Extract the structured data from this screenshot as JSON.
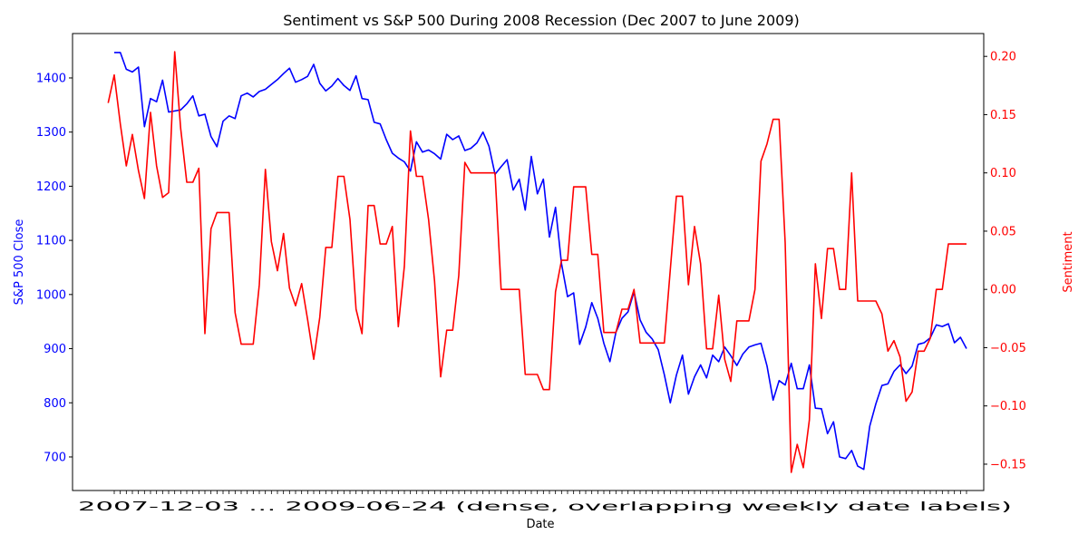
{
  "chart_data": {
    "type": "line",
    "title": "Sentiment vs S&P 500 During 2008 Recession (Dec 2007 to June 2009)",
    "xlabel": "Date",
    "ylabel_left": "S&P 500 Close",
    "ylabel_right": "Sentiment",
    "ylim_left": [
      638,
      1482
    ],
    "ylim_right": [
      -0.1726,
      0.2196
    ],
    "yticks_left": [
      700,
      800,
      900,
      1000,
      1100,
      1200,
      1300,
      1400
    ],
    "yticks_right": [
      -0.15,
      -0.1,
      -0.05,
      0.0,
      0.05,
      0.1,
      0.15,
      0.2
    ],
    "ytick_labels_right": [
      "−0.15",
      "−0.10",
      "−0.05",
      "0.00",
      "0.05",
      "0.10",
      "0.15",
      "0.20"
    ],
    "x_tick_label_text": "2007-12-03 … 2009-06-24 (dense, overlapping weekly date labels)",
    "grid": false,
    "colors": {
      "sp500": "#0000ff",
      "sentiment": "#ff0000"
    },
    "series": [
      {
        "axis": "left",
        "color": "#0000ff",
        "values": [
          1447,
          1447,
          1416,
          1411,
          1420,
          1310,
          1362,
          1356,
          1396,
          1337,
          1339,
          1341,
          1352,
          1367,
          1330,
          1333,
          1292,
          1273,
          1320,
          1330,
          1325,
          1367,
          1372,
          1365,
          1375,
          1379,
          1388,
          1397,
          1408,
          1418,
          1392,
          1397,
          1403,
          1425,
          1390,
          1376,
          1385,
          1399,
          1386,
          1377,
          1404,
          1362,
          1360,
          1318,
          1315,
          1286,
          1261,
          1252,
          1245,
          1228,
          1282,
          1263,
          1267,
          1260,
          1250,
          1296,
          1286,
          1293,
          1266,
          1270,
          1280,
          1300,
          1274,
          1222,
          1236,
          1249,
          1193,
          1213,
          1156,
          1255,
          1186,
          1213,
          1106,
          1161,
          1057,
          996,
          1003,
          908,
          940,
          985,
          956,
          910,
          876,
          930,
          956,
          968,
          1005,
          953,
          930,
          918,
          898,
          852,
          800,
          851,
          888,
          816,
          848,
          870,
          846,
          888,
          876,
          903,
          887,
          869,
          890,
          903,
          907,
          910,
          868,
          805,
          841,
          833,
          873,
          826,
          826,
          870,
          790,
          789,
          743,
          765,
          700,
          697,
          712,
          683,
          677,
          757,
          798,
          832,
          835,
          858,
          870,
          854,
          868,
          908,
          911,
          920,
          944,
          941,
          946,
          911,
          921,
          900
        ]
      },
      {
        "axis": "right",
        "color": "#ff0000",
        "values": [
          0.16,
          0.184,
          0.142,
          0.106,
          0.133,
          0.102,
          0.078,
          0.152,
          0.106,
          0.079,
          0.083,
          0.204,
          0.138,
          0.092,
          0.092,
          0.104,
          -0.038,
          0.052,
          0.066,
          0.066,
          0.066,
          -0.02,
          -0.047,
          -0.047,
          -0.047,
          0.004,
          0.103,
          0.041,
          0.016,
          0.048,
          0.001,
          -0.014,
          0.005,
          -0.026,
          -0.06,
          -0.024,
          0.036,
          0.036,
          0.097,
          0.097,
          0.06,
          -0.017,
          -0.038,
          0.072,
          0.072,
          0.039,
          0.039,
          0.054,
          -0.032,
          0.02,
          0.136,
          0.097,
          0.097,
          0.06,
          0.007,
          -0.075,
          -0.035,
          -0.035,
          0.012,
          0.109,
          0.1,
          0.1,
          0.1,
          0.1,
          0.1,
          0.0,
          0.0,
          0.0,
          0.0,
          -0.073,
          -0.073,
          -0.073,
          -0.086,
          -0.086,
          -0.002,
          0.025,
          0.025,
          0.088,
          0.088,
          0.088,
          0.03,
          0.03,
          -0.037,
          -0.037,
          -0.037,
          -0.017,
          -0.017,
          0.0,
          -0.046,
          -0.046,
          -0.046,
          -0.046,
          -0.046,
          0.017,
          0.08,
          0.08,
          0.004,
          0.054,
          0.022,
          -0.051,
          -0.051,
          -0.005,
          -0.06,
          -0.079,
          -0.027,
          -0.027,
          -0.027,
          0.0,
          0.11,
          0.125,
          0.146,
          0.146,
          0.04,
          -0.157,
          -0.133,
          -0.153,
          -0.112,
          0.022,
          -0.025,
          0.035,
          0.035,
          0.0,
          0.0,
          0.1,
          -0.01,
          -0.01,
          -0.01,
          -0.01,
          -0.021,
          -0.053,
          -0.044,
          -0.058,
          -0.096,
          -0.088,
          -0.053,
          -0.053,
          -0.042,
          0.0,
          0.0,
          0.039,
          0.039,
          0.039,
          0.039
        ]
      }
    ]
  }
}
